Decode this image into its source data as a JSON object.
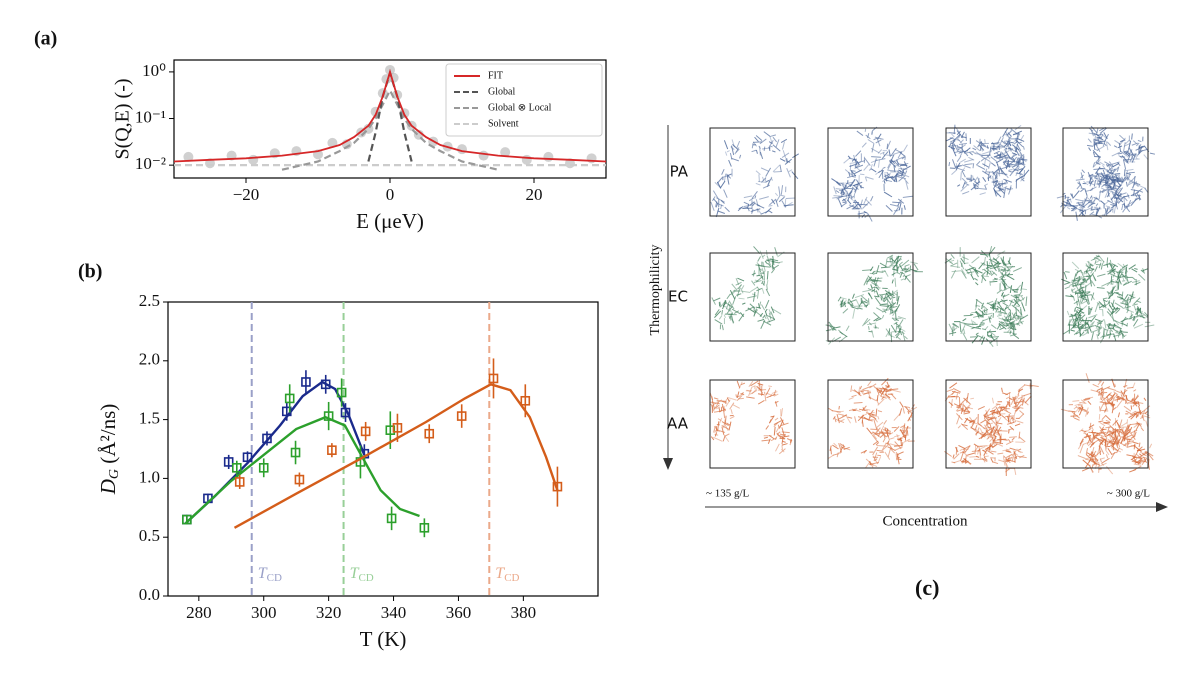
{
  "panel_labels": [
    "(a)",
    "(b)",
    "(c)"
  ],
  "chart_data": [
    {
      "type": "line",
      "log_y": true,
      "xlabel": "E (μeV)",
      "ylabel": "S(Q,E) (-)",
      "xlim": [
        -30,
        30
      ],
      "xticks": [
        {
          "value": -20,
          "label": "−20"
        },
        0,
        20
      ],
      "ylim": [
        0.0053,
        1.8
      ],
      "yticks": [
        {
          "value": 0.01,
          "label": "10⁻²"
        },
        {
          "value": 0.1,
          "label": "10⁻¹"
        },
        {
          "value": 1,
          "label": "10⁰"
        }
      ],
      "legend": "upper right",
      "x": [
        -30,
        -25,
        -20,
        -15,
        -10,
        -7,
        -5,
        -3,
        -2,
        -1,
        0,
        1,
        2,
        3,
        5,
        7,
        10,
        15,
        20,
        25,
        30
      ],
      "series": [
        {
          "name": "FIT",
          "color": "#d62728",
          "dash": false,
          "values": [
            0.012,
            0.013,
            0.014,
            0.016,
            0.02,
            0.027,
            0.04,
            0.07,
            0.12,
            0.3,
            1.0,
            0.3,
            0.12,
            0.07,
            0.04,
            0.027,
            0.02,
            0.016,
            0.014,
            0.013,
            0.012
          ]
        },
        {
          "name": "Global",
          "color": "#555555",
          "dash": true,
          "values": [
            null,
            null,
            null,
            null,
            null,
            null,
            null,
            0.012,
            0.05,
            0.3,
            0.95,
            0.3,
            0.05,
            0.012,
            null,
            null,
            null,
            null,
            null,
            null,
            null
          ]
        },
        {
          "name": "Global ⊗ Local",
          "color": "#999999",
          "dash": true,
          "values": [
            null,
            null,
            null,
            0.008,
            0.012,
            0.02,
            0.03,
            0.06,
            0.1,
            0.2,
            0.4,
            0.2,
            0.1,
            0.06,
            0.03,
            0.02,
            0.012,
            0.008,
            null,
            null,
            null
          ]
        },
        {
          "name": "Solvent",
          "color": "#cccccc",
          "dash": true,
          "values": [
            0.01,
            0.01,
            0.01,
            0.01,
            0.01,
            0.01,
            0.01,
            0.01,
            0.01,
            0.01,
            0.01,
            0.01,
            0.01,
            0.01,
            0.01,
            0.01,
            0.01,
            0.01,
            0.01,
            0.01,
            0.01
          ]
        }
      ],
      "points": {
        "color": "#b0b0b0",
        "x": [
          -28,
          -25,
          -22,
          -19,
          -16,
          -13,
          -10,
          -8,
          -6,
          -4,
          -3,
          -2,
          -1,
          -0.5,
          0,
          0.5,
          1,
          2,
          3,
          4,
          6,
          8,
          10,
          13,
          16,
          19,
          22,
          25,
          28
        ],
        "values": [
          0.015,
          0.011,
          0.016,
          0.013,
          0.018,
          0.02,
          0.017,
          0.03,
          0.028,
          0.05,
          0.06,
          0.14,
          0.35,
          0.7,
          1.1,
          0.75,
          0.32,
          0.13,
          0.07,
          0.045,
          0.032,
          0.025,
          0.022,
          0.016,
          0.019,
          0.013,
          0.015,
          0.011,
          0.014
        ]
      }
    },
    {
      "type": "scatter",
      "xlabel": "T (K)",
      "ylabel": {
        "symbol": "D",
        "subscript": "G",
        "unit": " (Å²/ns)"
      },
      "xlim": [
        270.5,
        403
      ],
      "xticks": [
        280,
        300,
        320,
        340,
        360,
        380
      ],
      "ylim": [
        0,
        2.5
      ],
      "yticks": [
        {
          "value": 0,
          "label": "0.0"
        },
        0.5,
        {
          "value": 1,
          "label": "1.0"
        },
        1.5,
        {
          "value": 2,
          "label": "2.0"
        },
        2.5
      ],
      "series": [
        {
          "color": "#1a2a8c",
          "x": [
            276.3,
            282.8,
            289.2,
            295,
            301,
            307.1,
            313,
            319.1,
            325.2,
            331
          ],
          "values": [
            0.65,
            0.83,
            1.14,
            1.18,
            1.34,
            1.57,
            1.82,
            1.8,
            1.56,
            1.21
          ],
          "errors": [
            0.04,
            0.04,
            0.06,
            0.05,
            0.06,
            0.08,
            0.1,
            0.08,
            0.08,
            0.08
          ],
          "fit_x": [
            276,
            285,
            295,
            305,
            312,
            318,
            322,
            326,
            331
          ],
          "fit_values": [
            0.62,
            0.85,
            1.13,
            1.45,
            1.7,
            1.82,
            1.76,
            1.55,
            1.2
          ]
        },
        {
          "color": "#2ca02c",
          "x": [
            276.3,
            291.7,
            300,
            308,
            309.8,
            320,
            324,
            329.8,
            339,
            339.4,
            349.5
          ],
          "values": [
            0.65,
            1.09,
            1.09,
            1.68,
            1.22,
            1.53,
            1.73,
            1.14,
            1.41,
            0.66,
            0.58
          ],
          "errors": [
            0.04,
            0.06,
            0.08,
            0.12,
            0.1,
            0.12,
            0.12,
            0.14,
            0.16,
            0.1,
            0.08
          ],
          "fit_x": [
            276,
            290,
            300,
            310,
            319,
            325,
            330,
            336,
            342,
            348
          ],
          "fit_values": [
            0.62,
            0.98,
            1.2,
            1.42,
            1.52,
            1.45,
            1.2,
            0.9,
            0.74,
            0.68
          ]
        },
        {
          "color": "#d45d1a",
          "x": [
            292.6,
            311,
            321,
            331.4,
            341.2,
            351,
            361,
            370.8,
            380.6,
            390.5
          ],
          "values": [
            0.97,
            0.99,
            1.24,
            1.4,
            1.43,
            1.38,
            1.53,
            1.85,
            1.66,
            0.93
          ],
          "errors": [
            0.06,
            0.06,
            0.06,
            0.08,
            0.12,
            0.08,
            0.1,
            0.17,
            0.14,
            0.17
          ],
          "fit_x": [
            291,
            310,
            330,
            350,
            362,
            370,
            376,
            382,
            387,
            390.5
          ],
          "fit_values": [
            0.58,
            0.87,
            1.17,
            1.48,
            1.68,
            1.8,
            1.75,
            1.52,
            1.18,
            0.9
          ]
        }
      ],
      "vlines": [
        {
          "value": 296.3,
          "color": "#9aa0c8",
          "label": "T",
          "subscript": "CD"
        },
        {
          "value": 324.6,
          "color": "#98cf98",
          "label": "T",
          "subscript": "CD"
        },
        {
          "value": 369.5,
          "color": "#eba98a",
          "label": "T",
          "subscript": "CD"
        }
      ]
    }
  ],
  "panel_c": {
    "y_axis": "Thermophilicity",
    "x_axis": "Concentration",
    "x_start": "~ 135 g/L",
    "x_end": "~ 300 g/L",
    "rows": [
      {
        "label": "PA",
        "color": "#4a6699"
      },
      {
        "label": "EC",
        "color": "#3e7d5a"
      },
      {
        "label": "AA",
        "color": "#d66b3a"
      }
    ]
  }
}
